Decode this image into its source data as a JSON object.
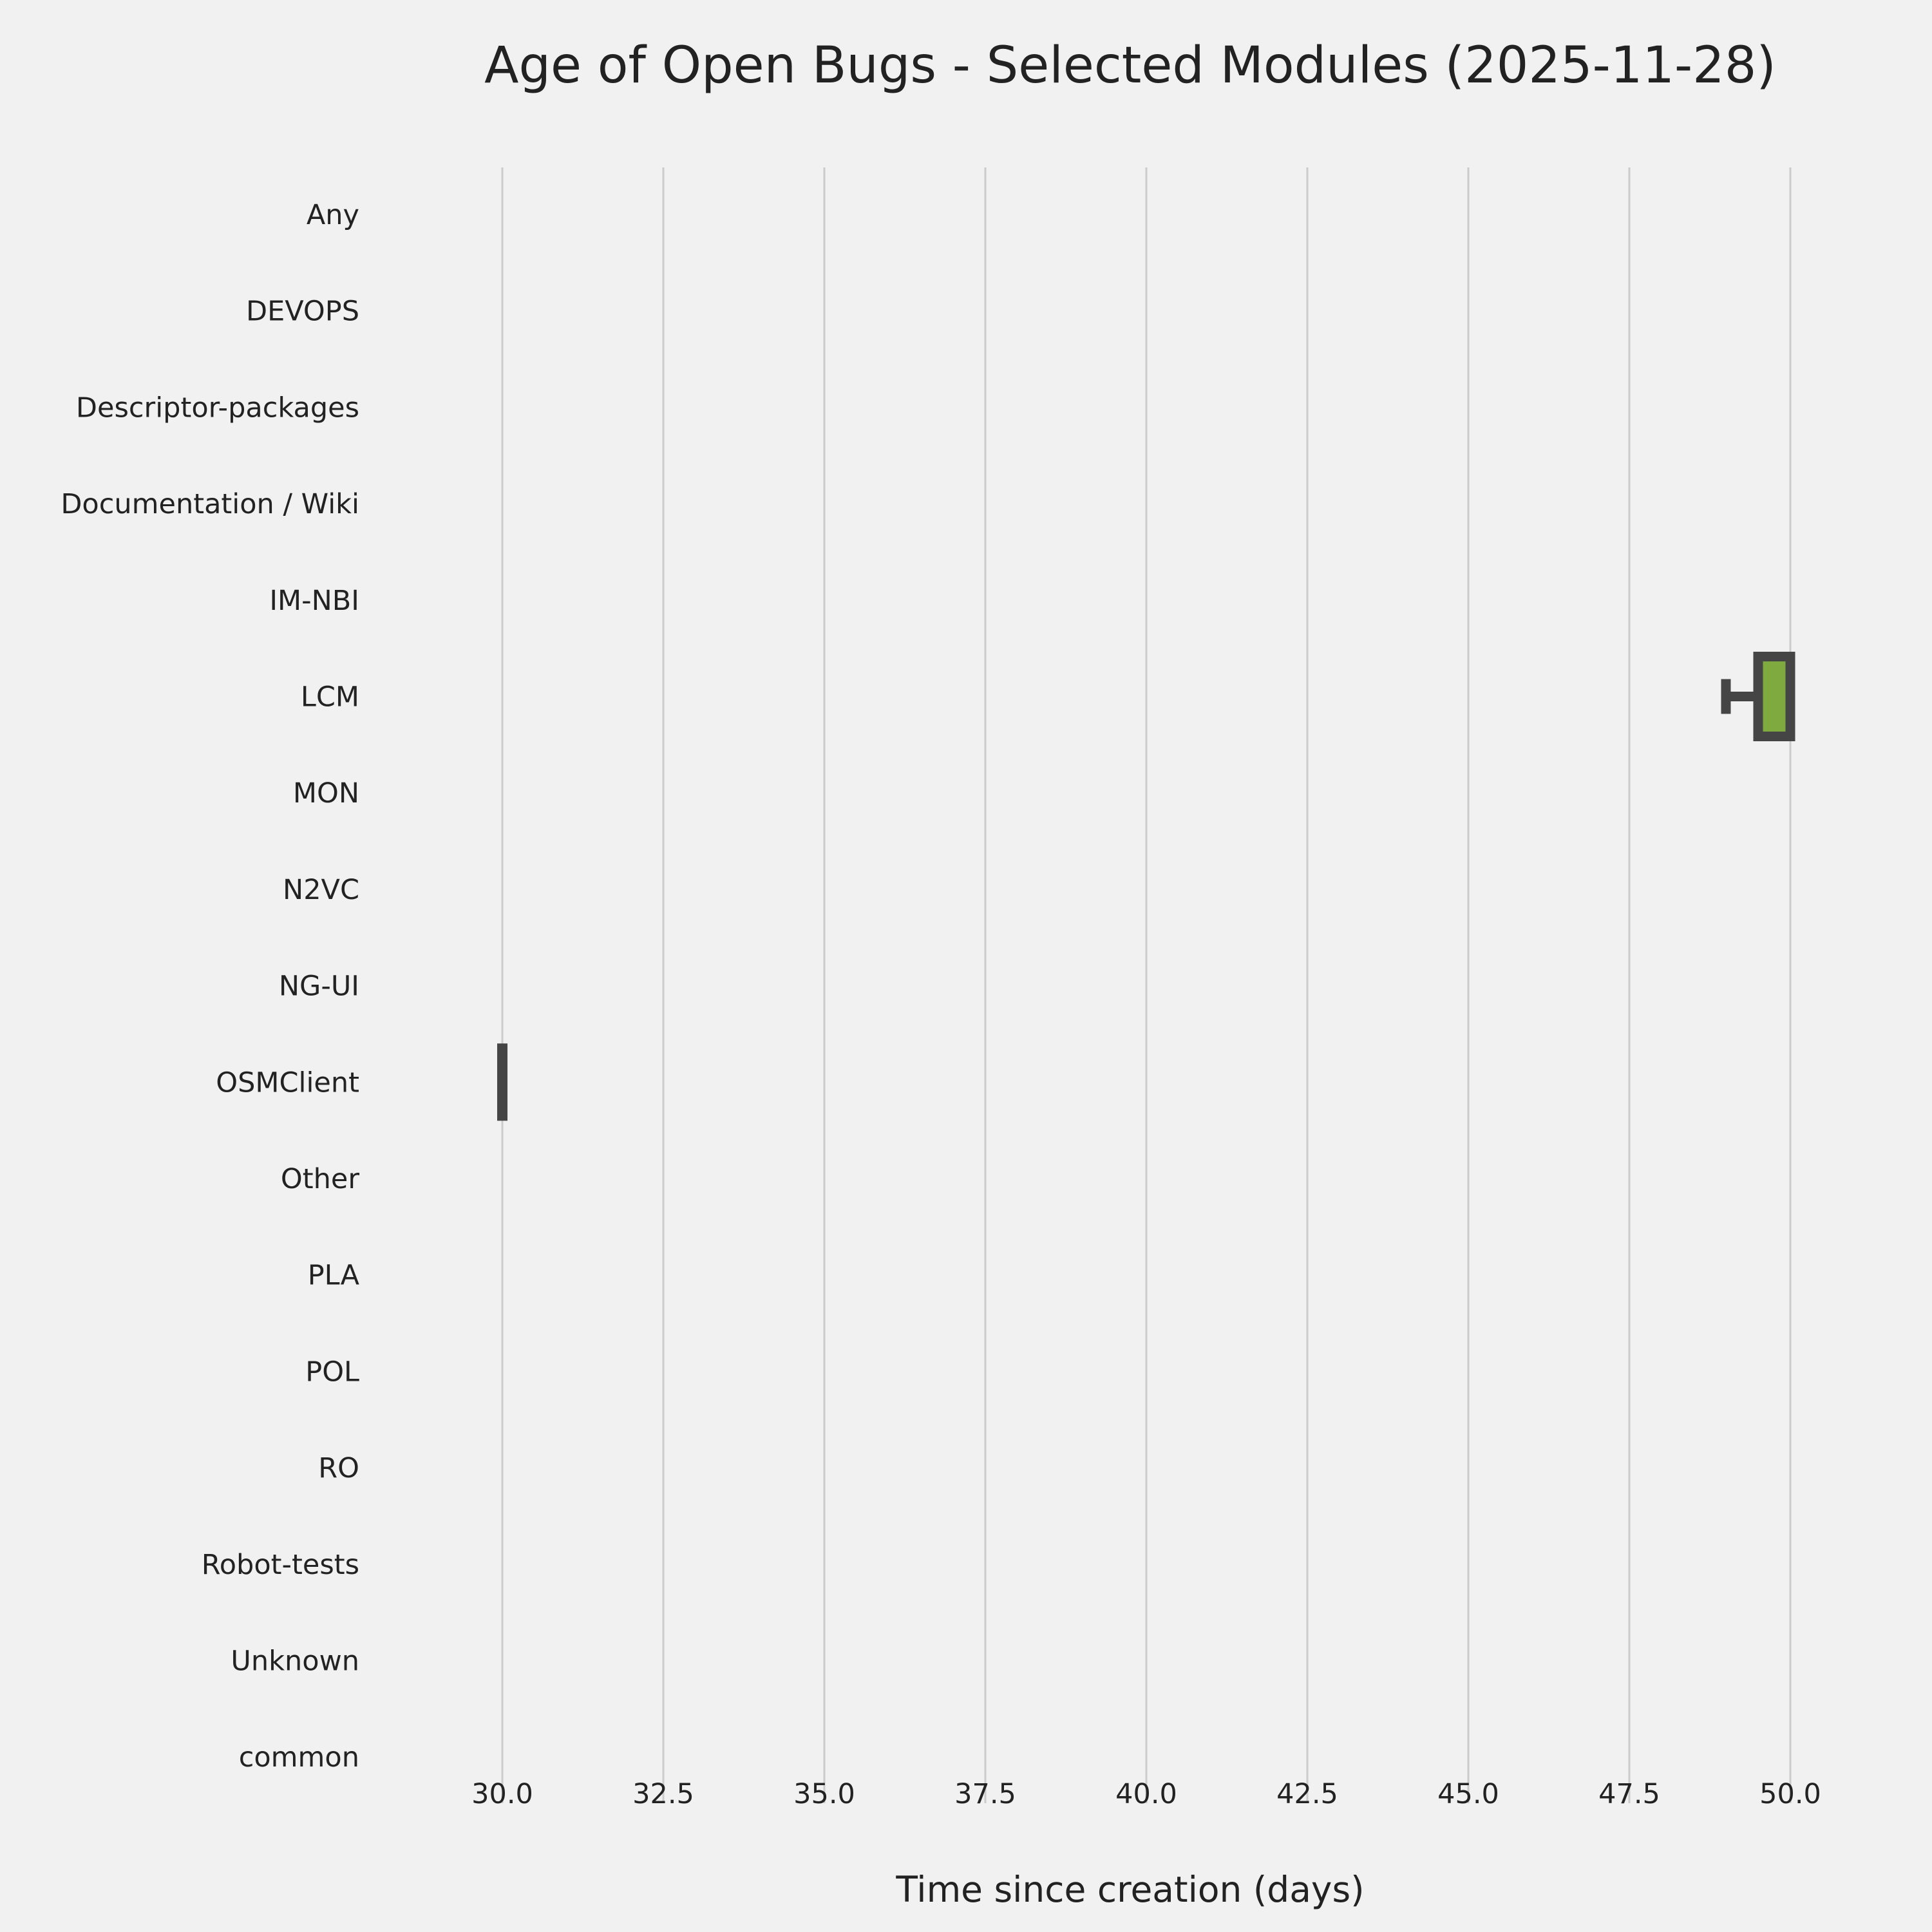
{
  "chart_data": {
    "type": "box",
    "orientation": "horizontal",
    "title": "Age of Open Bugs - Selected Modules (2025-11-28)",
    "xlabel": "Time since creation (days)",
    "ylabel": "",
    "xlim": [
      29.0,
      50.5
    ],
    "xticks": [
      "30.0",
      "32.5",
      "35.0",
      "37.5",
      "40.0",
      "42.5",
      "45.0",
      "47.5",
      "50.0"
    ],
    "grid": "vertical",
    "categories": [
      "Any",
      "DEVOPS",
      "Descriptor-packages",
      "Documentation / Wiki",
      "IM-NBI",
      "LCM",
      "MON",
      "N2VC",
      "NG-UI",
      "OSMClient",
      "Other",
      "PLA",
      "POL",
      "RO",
      "Robot-tests",
      "Unknown",
      "common"
    ],
    "boxes": [
      {
        "category": "LCM",
        "whisker_low": 49.0,
        "q1": 49.5,
        "median": 49.6,
        "q3": 50.0,
        "whisker_high": 50.0,
        "color": "#7faa3f"
      },
      {
        "category": "OSMClient",
        "whisker_low": 30.0,
        "q1": 30.0,
        "median": 30.0,
        "q3": 30.0,
        "whisker_high": 30.0,
        "color": "#444444"
      }
    ],
    "colors": {
      "background": "#f1f1f1",
      "grid": "#cbcbcb",
      "box_edge": "#454545"
    }
  }
}
